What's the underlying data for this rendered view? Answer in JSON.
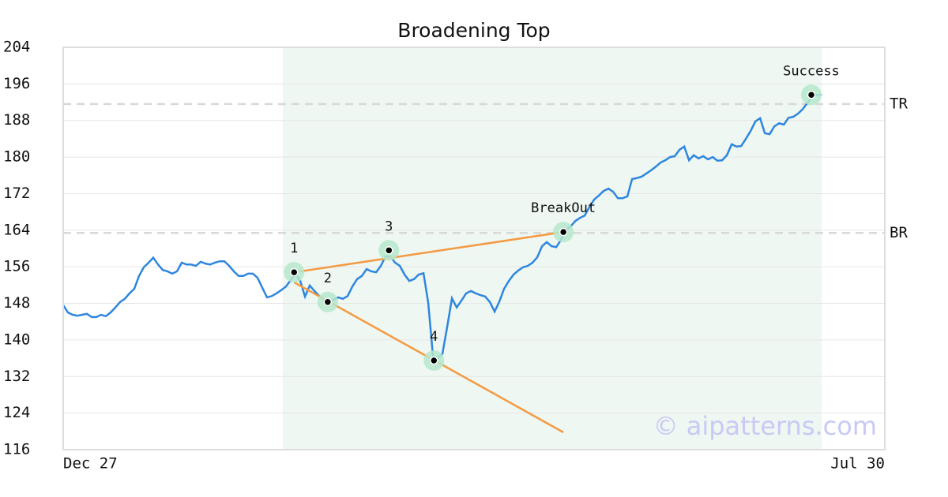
{
  "chart_data": {
    "type": "line",
    "title": "Broadening Top",
    "watermark": "© aipatterns.com",
    "color": "#2e86de",
    "grid": true,
    "xlim": [
      0,
      173.3
    ],
    "xticks": [
      {
        "value": 0,
        "label": "Dec 27"
      },
      {
        "value": 173.3,
        "label": "Jul 30"
      }
    ],
    "ylim": [
      116,
      204
    ],
    "yticks": [
      116,
      124,
      132,
      140,
      148,
      156,
      164,
      172,
      180,
      188,
      196,
      204
    ],
    "x": [
      0,
      1,
      2,
      3,
      4,
      5,
      6,
      7,
      8,
      9,
      10,
      11,
      12,
      13,
      14,
      15,
      16,
      17,
      18,
      19,
      20,
      21,
      22,
      23,
      24,
      25,
      26,
      27,
      28,
      29,
      30,
      31,
      32,
      33,
      34,
      35,
      36,
      37,
      38,
      39,
      40,
      41,
      42,
      43,
      44,
      45,
      46,
      47,
      48,
      49,
      50,
      51,
      52,
      53,
      54,
      55,
      56,
      57,
      58,
      59,
      60,
      61,
      62,
      63,
      64,
      65,
      66,
      67,
      68,
      69,
      70,
      71,
      72,
      73,
      74,
      75,
      76,
      77,
      78,
      79,
      80,
      81,
      82,
      83,
      84,
      85,
      86,
      87,
      88,
      89,
      90,
      91,
      92,
      93,
      94,
      95,
      96,
      97,
      98,
      99,
      100,
      101,
      102,
      103,
      104,
      105,
      106,
      107,
      108,
      109,
      110,
      111,
      112,
      113,
      114,
      115,
      116,
      117,
      118,
      119,
      120,
      121,
      122,
      123,
      124,
      125,
      126,
      127,
      128,
      129,
      130,
      131,
      132,
      133,
      134,
      135,
      136,
      137,
      138,
      139,
      140,
      141,
      142,
      143,
      144,
      145,
      146,
      147,
      148,
      149,
      150,
      151,
      152,
      153,
      154,
      155,
      156,
      157,
      158,
      159,
      160
    ],
    "values": [
      147.6,
      146.0,
      145.5,
      145.3,
      145.5,
      145.7,
      145.0,
      145.0,
      145.5,
      145.2,
      146.0,
      147.1,
      148.3,
      149.0,
      150.2,
      151.2,
      154.0,
      155.9,
      156.9,
      158.0,
      156.5,
      155.3,
      155.0,
      154.5,
      155.0,
      156.9,
      156.5,
      156.5,
      156.2,
      157.1,
      156.7,
      156.5,
      156.9,
      157.2,
      157.2,
      156.2,
      155.0,
      154.0,
      154.0,
      154.5,
      154.5,
      153.6,
      151.4,
      149.3,
      149.6,
      150.2,
      150.9,
      151.7,
      153.1,
      154.5,
      152.9,
      149.5,
      151.9,
      150.7,
      149.6,
      148.8,
      148.3,
      148.8,
      149.3,
      149.0,
      149.6,
      151.7,
      153.3,
      154.0,
      155.5,
      155.0,
      154.8,
      156.2,
      158.3,
      158.3,
      156.9,
      156.2,
      154.3,
      152.9,
      153.3,
      154.3,
      154.6,
      148.1,
      136.4,
      136.0,
      137.0,
      142.9,
      149.1,
      147.1,
      148.6,
      150.2,
      150.7,
      150.2,
      149.8,
      149.5,
      148.3,
      146.2,
      148.4,
      151.2,
      152.9,
      154.3,
      155.2,
      155.9,
      156.2,
      156.9,
      158.1,
      160.5,
      161.4,
      160.5,
      160.3,
      161.9,
      164.0,
      164.8,
      166.0,
      166.7,
      167.2,
      169.1,
      170.7,
      171.6,
      172.6,
      173.1,
      172.4,
      171.0,
      171.0,
      171.4,
      175.2,
      175.4,
      175.7,
      176.4,
      177.1,
      177.9,
      178.8,
      179.3,
      180.0,
      180.2,
      181.6,
      182.3,
      179.3,
      180.4,
      179.7,
      180.2,
      179.5,
      180.0,
      179.2,
      179.3,
      180.4,
      182.8,
      182.3,
      182.4,
      184.0,
      185.7,
      187.8,
      188.5,
      185.2,
      185.0,
      186.7,
      187.4,
      187.1,
      188.6,
      188.8,
      189.5,
      190.5,
      191.9,
      193.3,
      193.6,
      193.6
    ],
    "highlight": [
      46.3,
      160
    ],
    "levels": [
      {
        "label": "TR",
        "value": 191.6
      },
      {
        "label": "BR",
        "value": 163.4
      }
    ],
    "trend_lines": [
      {
        "x": [
          48.7,
          105.5
        ],
        "y": [
          154.8,
          163.6
        ],
        "color": "#f59a42"
      },
      {
        "x": [
          48.7,
          105.5
        ],
        "y": [
          152.6,
          119.8
        ],
        "color": "#f59a42"
      }
    ],
    "annotations": [
      {
        "label": "1",
        "x": 48.7,
        "y": 154.8
      },
      {
        "label": "2",
        "x": 55.8,
        "y": 148.3
      },
      {
        "label": "3",
        "x": 68.7,
        "y": 159.6
      },
      {
        "label": "4",
        "x": 78.2,
        "y": 135.5
      },
      {
        "label": "BreakOut",
        "x": 105.5,
        "y": 163.6
      },
      {
        "label": "Success",
        "x": 157.8,
        "y": 193.6
      }
    ]
  }
}
